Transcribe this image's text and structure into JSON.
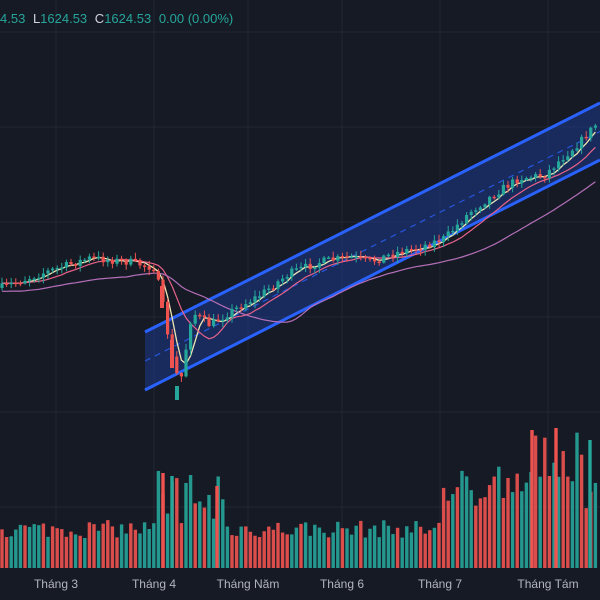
{
  "legend": {
    "o_value": "4.53",
    "l_key": "L",
    "l_value": "1624.53",
    "c_key": "C",
    "c_value": "1624.53",
    "change": "0.00 (0.00%)"
  },
  "colors": {
    "background": "#161a25",
    "grid": "#232734",
    "up": "#26a69a",
    "down": "#ef5350",
    "channel_line": "#2962ff",
    "channel_fill": "#1e3a8a",
    "ma_fast": "#f0e6b3",
    "ma_mid": "#e8628a",
    "ma_slow": "#b56fb9",
    "axis_text": "#b2b5be"
  },
  "chart_data": {
    "type": "candlestick",
    "x_ticks": [
      "Tháng 3",
      "Tháng 4",
      "Tháng Năm",
      "Tháng 6",
      "Tháng 7",
      "Tháng Tám"
    ],
    "indicators": [
      "moving-average-fast",
      "moving-average-mid",
      "moving-average-slow",
      "volume",
      "regression-channel"
    ],
    "grid": true,
    "series_note": ""
  }
}
